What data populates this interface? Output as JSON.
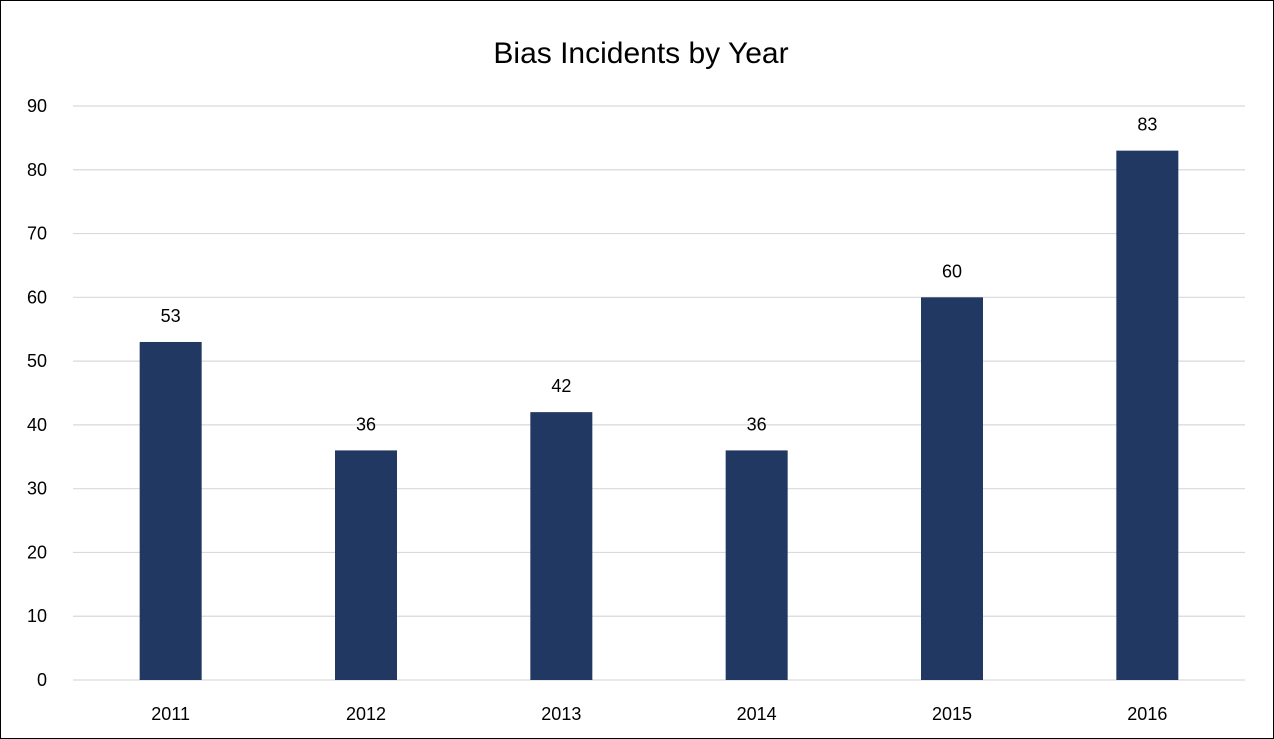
{
  "chart_data": {
    "type": "bar",
    "title": "Bias Incidents by Year",
    "categories": [
      "2011",
      "2012",
      "2013",
      "2014",
      "2015",
      "2016"
    ],
    "values": [
      53,
      36,
      42,
      36,
      60,
      83
    ],
    "data_labels": [
      "53",
      "36",
      "42",
      "36",
      "60",
      "83"
    ],
    "ylim": [
      0,
      90
    ],
    "yticks": [
      0,
      10,
      20,
      30,
      40,
      50,
      60,
      70,
      80,
      90
    ],
    "xlabel": "",
    "ylabel": "",
    "grid": true,
    "legend": "none",
    "bar_color": "#213862",
    "grid_color": "#d9d9d9"
  }
}
